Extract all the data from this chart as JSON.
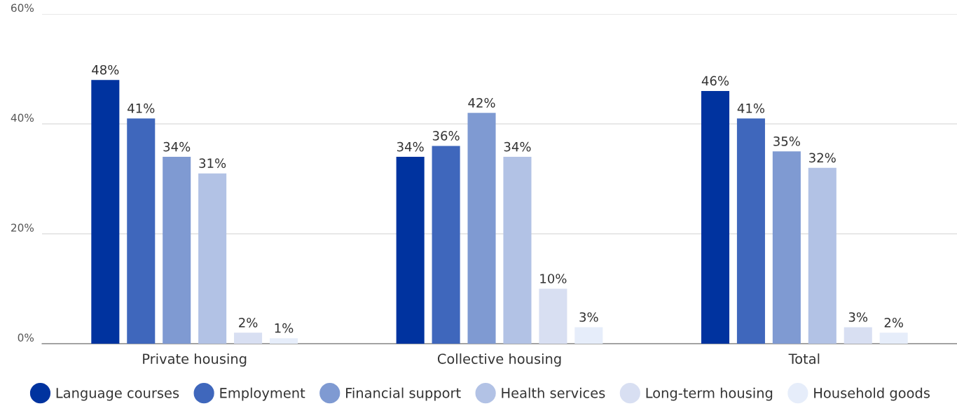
{
  "chart_data": {
    "type": "bar",
    "categories": [
      "Private housing",
      "Collective housing",
      "Total"
    ],
    "series": [
      {
        "name": "Language courses",
        "color": "#00339f",
        "values": [
          48,
          34,
          46
        ],
        "value_labels": [
          "48%",
          "34%",
          "46%"
        ]
      },
      {
        "name": "Employment",
        "color": "#3f67bc",
        "values": [
          41,
          36,
          41
        ],
        "value_labels": [
          "41%",
          "36%",
          "41%"
        ]
      },
      {
        "name": "Financial support",
        "color": "#7f9ad2",
        "values": [
          34,
          42,
          35
        ],
        "value_labels": [
          "34%",
          "42%",
          "35%"
        ]
      },
      {
        "name": "Health services",
        "color": "#b2c2e5",
        "values": [
          31,
          34,
          32
        ],
        "value_labels": [
          "31%",
          "34%",
          "32%"
        ]
      },
      {
        "name": "Long-term housing",
        "color": "#d8dff2",
        "values": [
          2,
          10,
          3
        ],
        "value_labels": [
          "2%",
          "10%",
          "3%"
        ]
      },
      {
        "name": "Household goods",
        "color": "#e6edfa",
        "values": [
          1,
          3,
          2
        ],
        "value_labels": [
          "1%",
          "3%",
          "2%"
        ]
      }
    ],
    "ylim": [
      0,
      60
    ],
    "yticks": [
      {
        "value": 0,
        "label": "0%"
      },
      {
        "value": 20,
        "label": "20%"
      },
      {
        "value": 40,
        "label": "40%"
      },
      {
        "value": 60,
        "label": "60%"
      }
    ],
    "grid": "y",
    "legend": "bottom",
    "marker": "circle"
  }
}
